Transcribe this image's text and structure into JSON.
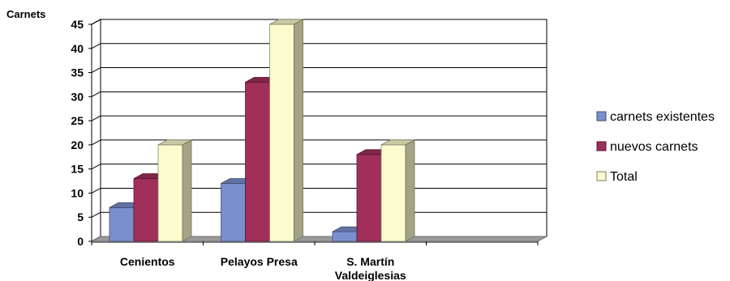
{
  "chart_data": {
    "type": "bar",
    "ylabel": "Carnets",
    "categories": [
      "Cenientos",
      "Pelayos Presa",
      "S. Martín Valdeiglesias",
      ""
    ],
    "category_label_lines": [
      [
        "Cenientos"
      ],
      [
        "Pelayos Presa"
      ],
      [
        "S. Martín",
        "Valdeiglesias"
      ],
      []
    ],
    "series": [
      {
        "name": "carnets existentes",
        "values": [
          7,
          12,
          2,
          null
        ],
        "color": "#7b8fcf"
      },
      {
        "name": "nuevos carnets",
        "values": [
          13,
          33,
          18,
          null
        ],
        "color": "#a0305a"
      },
      {
        "name": "Total",
        "values": [
          20,
          45,
          20,
          null
        ],
        "color": "#fbfbcd"
      }
    ],
    "ylim": [
      0,
      45
    ],
    "yticks": [
      0,
      5,
      10,
      15,
      20,
      25,
      30,
      35,
      40,
      45
    ],
    "grid": true,
    "three_d": true,
    "legend_position": "right"
  }
}
